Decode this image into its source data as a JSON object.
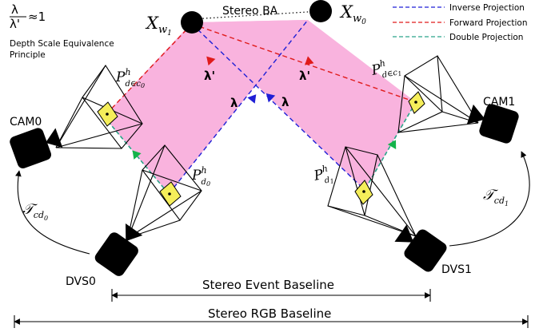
{
  "legend": {
    "items": [
      {
        "label": "Inverse Projection",
        "color": "#1f1fd6"
      },
      {
        "label": "Forward Projection",
        "color": "#e01b1b"
      },
      {
        "label": "Double Projection",
        "color": "#2aa58a"
      }
    ]
  },
  "principle": {
    "ratio_numerator": "λ",
    "ratio_denominator": "λ'",
    "ratio_relation": "≈1",
    "text_line1": "Depth Scale Equivalence",
    "text_line2": "Principle"
  },
  "points": {
    "xw1": {
      "base": "X",
      "sub": "w",
      "subsub": "1"
    },
    "xw0": {
      "base": "X",
      "sub": "w",
      "subsub": "0"
    }
  },
  "stereo_ba": "Stereo BA",
  "lambda_labels": {
    "forward": "λ'",
    "inverse": "λ"
  },
  "cameras": {
    "cam0": "CAM0",
    "cam1": "CAM1",
    "dvs0": "DVS0",
    "dvs1": "DVS1"
  },
  "projections": {
    "p_dec0": {
      "base": "P",
      "sup": "h",
      "sub": "d∈c",
      "subsub": "0"
    },
    "p_dec1": {
      "base": "P",
      "sup": "h",
      "sub": "d∈c",
      "subsub": "1"
    },
    "p_d0": {
      "base": "P",
      "sup": "h",
      "sub": "d",
      "subsub": "0"
    },
    "p_d1": {
      "base": "P",
      "sup": "h",
      "sub": "d",
      "subsub": "1"
    }
  },
  "transforms": {
    "t_cd0": {
      "base": "𝒯",
      "sub": "cd",
      "subsub": "0"
    },
    "t_cd1": {
      "base": "𝒯",
      "sub": "cd",
      "subsub": "1"
    }
  },
  "baselines": {
    "event": "Stereo Event Baseline",
    "rgb": "Stereo RGB Baseline"
  },
  "colors": {
    "pink_fill": "#f9b3de",
    "sensor_fill": "#f5ee5a",
    "camera_body": "#000000"
  }
}
